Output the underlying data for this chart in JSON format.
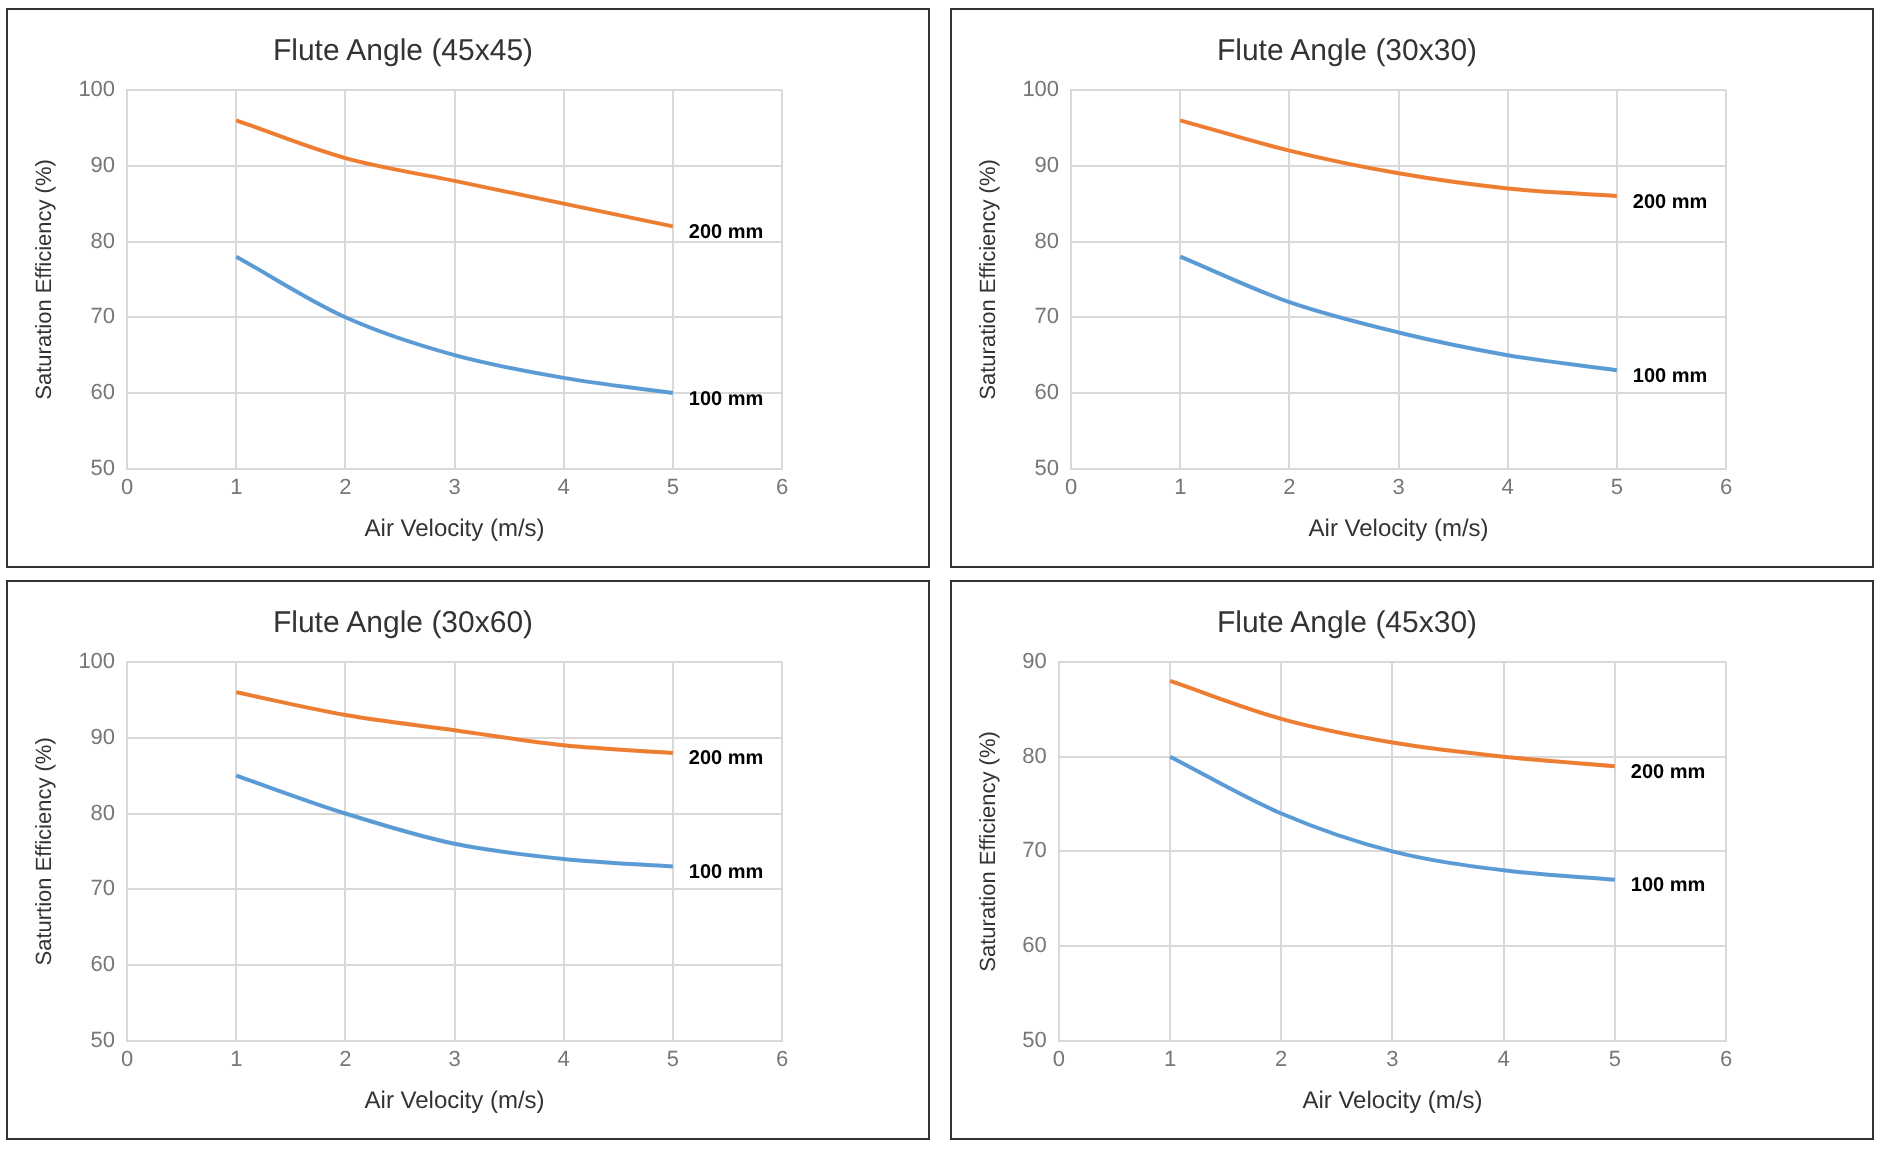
{
  "chart_data": [
    {
      "type": "line",
      "title": "Flute Angle (45x45)",
      "xlabel": "Air Velocity (m/s)",
      "ylabel": "Saturation Efficiency (%)",
      "x": [
        1,
        2,
        3,
        4,
        5
      ],
      "xlim": [
        0,
        6
      ],
      "xticks": [
        0,
        1,
        2,
        3,
        4,
        5,
        6
      ],
      "ylim": [
        50,
        100
      ],
      "yticks": [
        50,
        60,
        70,
        80,
        90,
        100
      ],
      "grid": true,
      "series": [
        {
          "name": "200 mm",
          "color": "#ed7d31",
          "values": [
            96,
            91,
            88,
            85,
            82
          ]
        },
        {
          "name": "100 mm",
          "color": "#5b9bd5",
          "values": [
            78,
            70,
            65,
            62,
            60
          ]
        }
      ]
    },
    {
      "type": "line",
      "title": "Flute Angle (30x30)",
      "xlabel": "Air Velocity (m/s)",
      "ylabel": "Saturation Efficiency (%)",
      "x": [
        1,
        2,
        3,
        4,
        5
      ],
      "xlim": [
        0,
        6
      ],
      "xticks": [
        0,
        1,
        2,
        3,
        4,
        5,
        6
      ],
      "ylim": [
        50,
        100
      ],
      "yticks": [
        50,
        60,
        70,
        80,
        90,
        100
      ],
      "grid": true,
      "series": [
        {
          "name": "200 mm",
          "color": "#ed7d31",
          "values": [
            96,
            92,
            89,
            87,
            86
          ]
        },
        {
          "name": "100 mm",
          "color": "#5b9bd5",
          "values": [
            78,
            72,
            68,
            65,
            63
          ]
        }
      ]
    },
    {
      "type": "line",
      "title": "Flute Angle (30x60)",
      "xlabel": "Air Velocity (m/s)",
      "ylabel": "Saturtion Efficiency (%)",
      "x": [
        1,
        2,
        3,
        4,
        5
      ],
      "xlim": [
        0,
        6
      ],
      "xticks": [
        0,
        1,
        2,
        3,
        4,
        5,
        6
      ],
      "ylim": [
        50,
        100
      ],
      "yticks": [
        50,
        60,
        70,
        80,
        90,
        100
      ],
      "grid": true,
      "series": [
        {
          "name": "200 mm",
          "color": "#ed7d31",
          "values": [
            96,
            93,
            91,
            89,
            88
          ]
        },
        {
          "name": "100 mm",
          "color": "#5b9bd5",
          "values": [
            85,
            80,
            76,
            74,
            73
          ]
        }
      ]
    },
    {
      "type": "line",
      "title": "Flute Angle (45x30)",
      "xlabel": "Air Velocity (m/s)",
      "ylabel": "Saturation Efficiency (%)",
      "x": [
        1,
        2,
        3,
        4,
        5
      ],
      "xlim": [
        0,
        6
      ],
      "xticks": [
        0,
        1,
        2,
        3,
        4,
        5,
        6
      ],
      "ylim": [
        50,
        90
      ],
      "yticks": [
        50,
        60,
        70,
        80,
        90
      ],
      "grid": true,
      "series": [
        {
          "name": "200 mm",
          "color": "#ed7d31",
          "values": [
            88,
            84,
            81.5,
            80,
            79
          ]
        },
        {
          "name": "100 mm",
          "color": "#5b9bd5",
          "values": [
            80,
            74,
            70,
            68,
            67
          ]
        }
      ]
    }
  ]
}
